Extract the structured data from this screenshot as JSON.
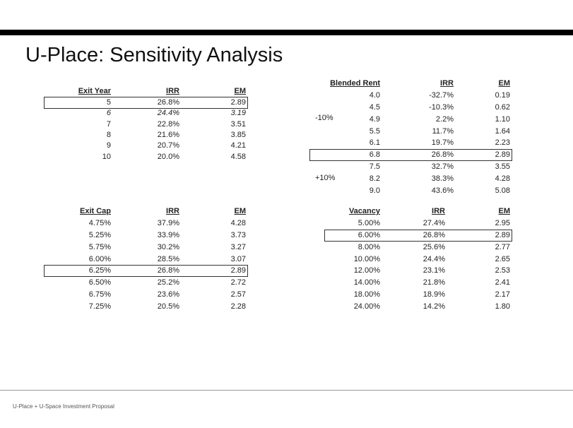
{
  "title": "U-Place: Sensitivity Analysis",
  "tables": [
    {
      "headers": [
        "Exit Year",
        "IRR",
        "EM"
      ],
      "highlight_row": 0,
      "italic_row": 1,
      "rows": [
        [
          "5",
          "26.8%",
          "2.89"
        ],
        [
          "6",
          "24.4%",
          "3.19"
        ],
        [
          "7",
          "22.8%",
          "3.51"
        ],
        [
          "8",
          "21.6%",
          "3.85"
        ],
        [
          "9",
          "20.7%",
          "4.21"
        ],
        [
          "10",
          "20.0%",
          "4.58"
        ]
      ]
    },
    {
      "headers": [
        "Blended Rent",
        "IRR",
        "EM"
      ],
      "highlight_row": 5,
      "rows": [
        [
          "4.0",
          "-32.7%",
          "0.19"
        ],
        [
          "4.5",
          "-10.3%",
          "0.62"
        ],
        [
          "4.9",
          "2.2%",
          "1.10"
        ],
        [
          "5.5",
          "11.7%",
          "1.64"
        ],
        [
          "6.1",
          "19.7%",
          "2.23"
        ],
        [
          "6.8",
          "26.8%",
          "2.89"
        ],
        [
          "7.5",
          "32.7%",
          "3.55"
        ],
        [
          "8.2",
          "38.3%",
          "4.28"
        ],
        [
          "9.0",
          "43.6%",
          "5.08"
        ]
      ],
      "annotations": [
        "-10%",
        "+10%"
      ]
    },
    {
      "headers": [
        "Exit Cap",
        "IRR",
        "EM"
      ],
      "highlight_row": 4,
      "rows": [
        [
          "4.75%",
          "37.9%",
          "4.28"
        ],
        [
          "5.25%",
          "33.9%",
          "3.73"
        ],
        [
          "5.75%",
          "30.2%",
          "3.27"
        ],
        [
          "6.00%",
          "28.5%",
          "3.07"
        ],
        [
          "6.25%",
          "26.8%",
          "2.89"
        ],
        [
          "6.50%",
          "25.2%",
          "2.72"
        ],
        [
          "6.75%",
          "23.6%",
          "2.57"
        ],
        [
          "7.25%",
          "20.5%",
          "2.28"
        ]
      ]
    },
    {
      "headers": [
        "Vacancy",
        "IRR",
        "EM"
      ],
      "highlight_row": 1,
      "rows": [
        [
          "5.00%",
          "27.4%",
          "2.95"
        ],
        [
          "6.00%",
          "26.8%",
          "2.89"
        ],
        [
          "8.00%",
          "25.6%",
          "2.77"
        ],
        [
          "10.00%",
          "24.4%",
          "2.65"
        ],
        [
          "12.00%",
          "23.1%",
          "2.53"
        ],
        [
          "14.00%",
          "21.8%",
          "2.41"
        ],
        [
          "18.00%",
          "18.9%",
          "2.17"
        ],
        [
          "24.00%",
          "14.2%",
          "1.80"
        ]
      ]
    }
  ],
  "footer": "U-Place + U-Space Investment Proposal"
}
